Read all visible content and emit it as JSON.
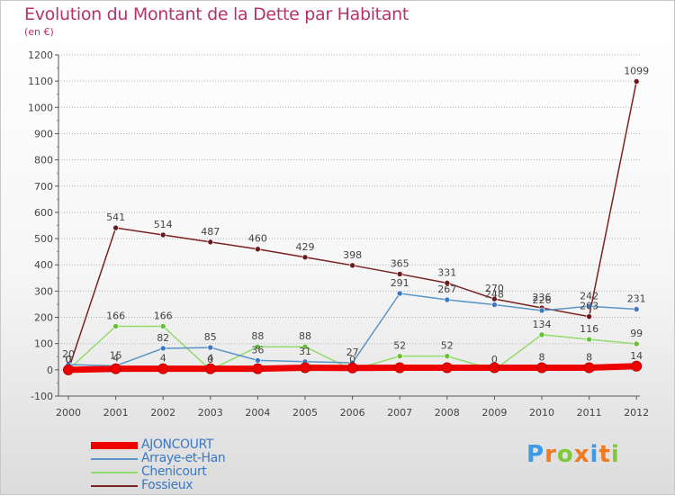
{
  "header": {
    "title": "Evolution du Montant de la Dette par Habitant",
    "unit": "(en €)"
  },
  "colors": {
    "title": "#b5336b",
    "grid": "#b0b0b0",
    "axis": "#555555",
    "label": "#444444"
  },
  "chart_data": {
    "type": "line",
    "title": "Evolution du Montant de la Dette par Habitant",
    "subtitle": "(en €)",
    "xlabel": "",
    "ylabel": "",
    "categories": [
      "2000",
      "2001",
      "2002",
      "2003",
      "2004",
      "2005",
      "2006",
      "2007",
      "2008",
      "2009",
      "2010",
      "2011",
      "2012"
    ],
    "ylim": [
      -100,
      1200
    ],
    "yticks": [
      -100,
      0,
      100,
      200,
      300,
      400,
      500,
      600,
      700,
      800,
      900,
      1000,
      1100,
      1200
    ],
    "grid": true,
    "legend": "bottom-left",
    "series": [
      {
        "name": "AJONCOURT",
        "color": "#ee0000",
        "marker": "#ee0000",
        "width": 7,
        "values": [
          0,
          4,
          4,
          4,
          4,
          8,
          7,
          8,
          8,
          8,
          8,
          8,
          14
        ],
        "labels": [
          "0",
          "4",
          "4",
          "4",
          "",
          "",
          "",
          "",
          "",
          "",
          "8",
          "8",
          "14"
        ]
      },
      {
        "name": "Arraye-et-Han",
        "color": "#5a94c8",
        "marker": "#3a78c3",
        "width": 1.5,
        "values": [
          20,
          15,
          82,
          85,
          36,
          31,
          27,
          291,
          267,
          248,
          226,
          242,
          231
        ],
        "labels": [
          "20",
          "15",
          "82",
          "85",
          "36",
          "31",
          "27",
          "291",
          "267",
          "248",
          "226",
          "242",
          "231"
        ]
      },
      {
        "name": "Chenicourt",
        "color": "#90dc6c",
        "marker": "#66c033",
        "width": 1.5,
        "values": [
          0,
          166,
          166,
          0,
          88,
          88,
          0,
          52,
          52,
          0,
          134,
          116,
          99
        ],
        "labels": [
          "0",
          "166",
          "166",
          "0",
          "88",
          "88",
          "0",
          "52",
          "52",
          "0",
          "134",
          "116",
          "99"
        ]
      },
      {
        "name": "Fossieux",
        "color": "#7a2222",
        "marker": "#6a1a1a",
        "width": 1.5,
        "values": [
          0,
          541,
          514,
          487,
          460,
          429,
          398,
          365,
          331,
          270,
          236,
          203,
          1099
        ],
        "labels": [
          "0",
          "541",
          "514",
          "487",
          "460",
          "429",
          "398",
          "365",
          "331",
          "270",
          "236",
          "203",
          "1099"
        ]
      }
    ]
  },
  "logo": {
    "text": "Proxiti",
    "letters": [
      "P",
      "r",
      "o",
      "x",
      "i",
      "t",
      "i"
    ],
    "letter_colors": [
      "#3c9be8",
      "#f07a20",
      "#7fc93a",
      "#f07a20",
      "#3c9be8",
      "#f07a20",
      "#7fc93a"
    ]
  }
}
